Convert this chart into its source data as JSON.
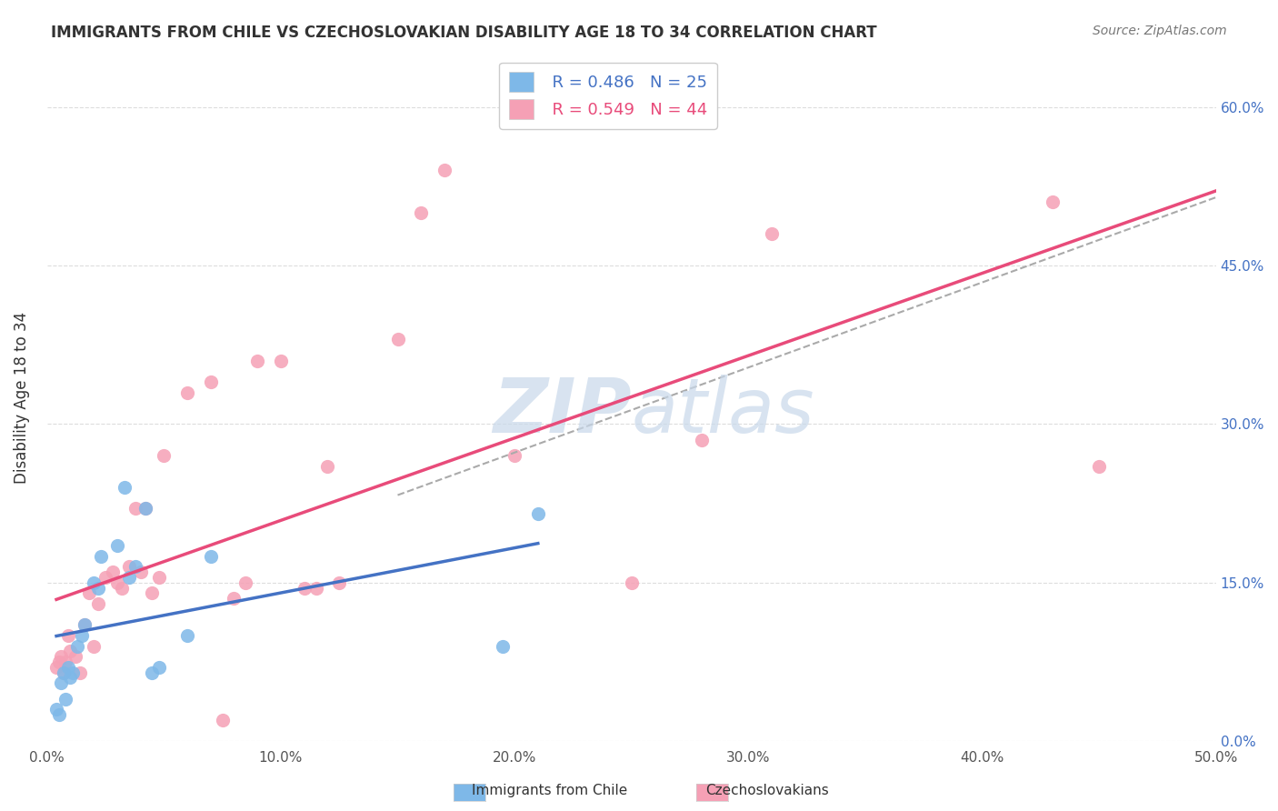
{
  "title": "IMMIGRANTS FROM CHILE VS CZECHOSLOVAKIAN DISABILITY AGE 18 TO 34 CORRELATION CHART",
  "source": "Source: ZipAtlas.com",
  "ylabel": "Disability Age 18 to 34",
  "legend_label_chile": "Immigrants from Chile",
  "legend_label_czech": "Czechoslovakians",
  "chile_R": "R = 0.486",
  "chile_N": "N = 25",
  "czech_R": "R = 0.549",
  "czech_N": "N = 44",
  "xlim": [
    0.0,
    0.5
  ],
  "ylim": [
    0.0,
    0.65
  ],
  "xticks": [
    0.0,
    0.1,
    0.2,
    0.3,
    0.4,
    0.5
  ],
  "yticks": [
    0.0,
    0.15,
    0.3,
    0.45,
    0.6
  ],
  "xtick_labels": [
    "0.0%",
    "10.0%",
    "20.0%",
    "30.0%",
    "40.0%",
    "50.0%"
  ],
  "ytick_labels_right": [
    "0.0%",
    "15.0%",
    "30.0%",
    "45.0%",
    "60.0%"
  ],
  "color_chile": "#7EB8E8",
  "color_czech": "#F5A0B5",
  "color_chile_line": "#4472C4",
  "color_czech_line": "#E84B7A",
  "color_dashed_line": "#AAAAAA",
  "watermark_color": "#C8D8EA",
  "chile_x": [
    0.004,
    0.005,
    0.006,
    0.007,
    0.008,
    0.009,
    0.01,
    0.011,
    0.013,
    0.015,
    0.016,
    0.02,
    0.022,
    0.023,
    0.03,
    0.033,
    0.035,
    0.038,
    0.042,
    0.045,
    0.048,
    0.06,
    0.07,
    0.195,
    0.21
  ],
  "chile_y": [
    0.03,
    0.025,
    0.055,
    0.065,
    0.04,
    0.07,
    0.06,
    0.065,
    0.09,
    0.1,
    0.11,
    0.15,
    0.145,
    0.175,
    0.185,
    0.24,
    0.155,
    0.165,
    0.22,
    0.065,
    0.07,
    0.1,
    0.175,
    0.09,
    0.215
  ],
  "czech_x": [
    0.004,
    0.005,
    0.006,
    0.007,
    0.008,
    0.009,
    0.01,
    0.012,
    0.014,
    0.016,
    0.018,
    0.02,
    0.022,
    0.025,
    0.028,
    0.03,
    0.032,
    0.035,
    0.038,
    0.04,
    0.042,
    0.045,
    0.048,
    0.05,
    0.06,
    0.07,
    0.075,
    0.08,
    0.085,
    0.09,
    0.1,
    0.11,
    0.115,
    0.12,
    0.125,
    0.15,
    0.16,
    0.17,
    0.2,
    0.25,
    0.28,
    0.31,
    0.43,
    0.45
  ],
  "czech_y": [
    0.07,
    0.075,
    0.08,
    0.065,
    0.075,
    0.1,
    0.085,
    0.08,
    0.065,
    0.11,
    0.14,
    0.09,
    0.13,
    0.155,
    0.16,
    0.15,
    0.145,
    0.165,
    0.22,
    0.16,
    0.22,
    0.14,
    0.155,
    0.27,
    0.33,
    0.34,
    0.02,
    0.135,
    0.15,
    0.36,
    0.36,
    0.145,
    0.145,
    0.26,
    0.15,
    0.38,
    0.5,
    0.54,
    0.27,
    0.15,
    0.285,
    0.48,
    0.51,
    0.26
  ]
}
